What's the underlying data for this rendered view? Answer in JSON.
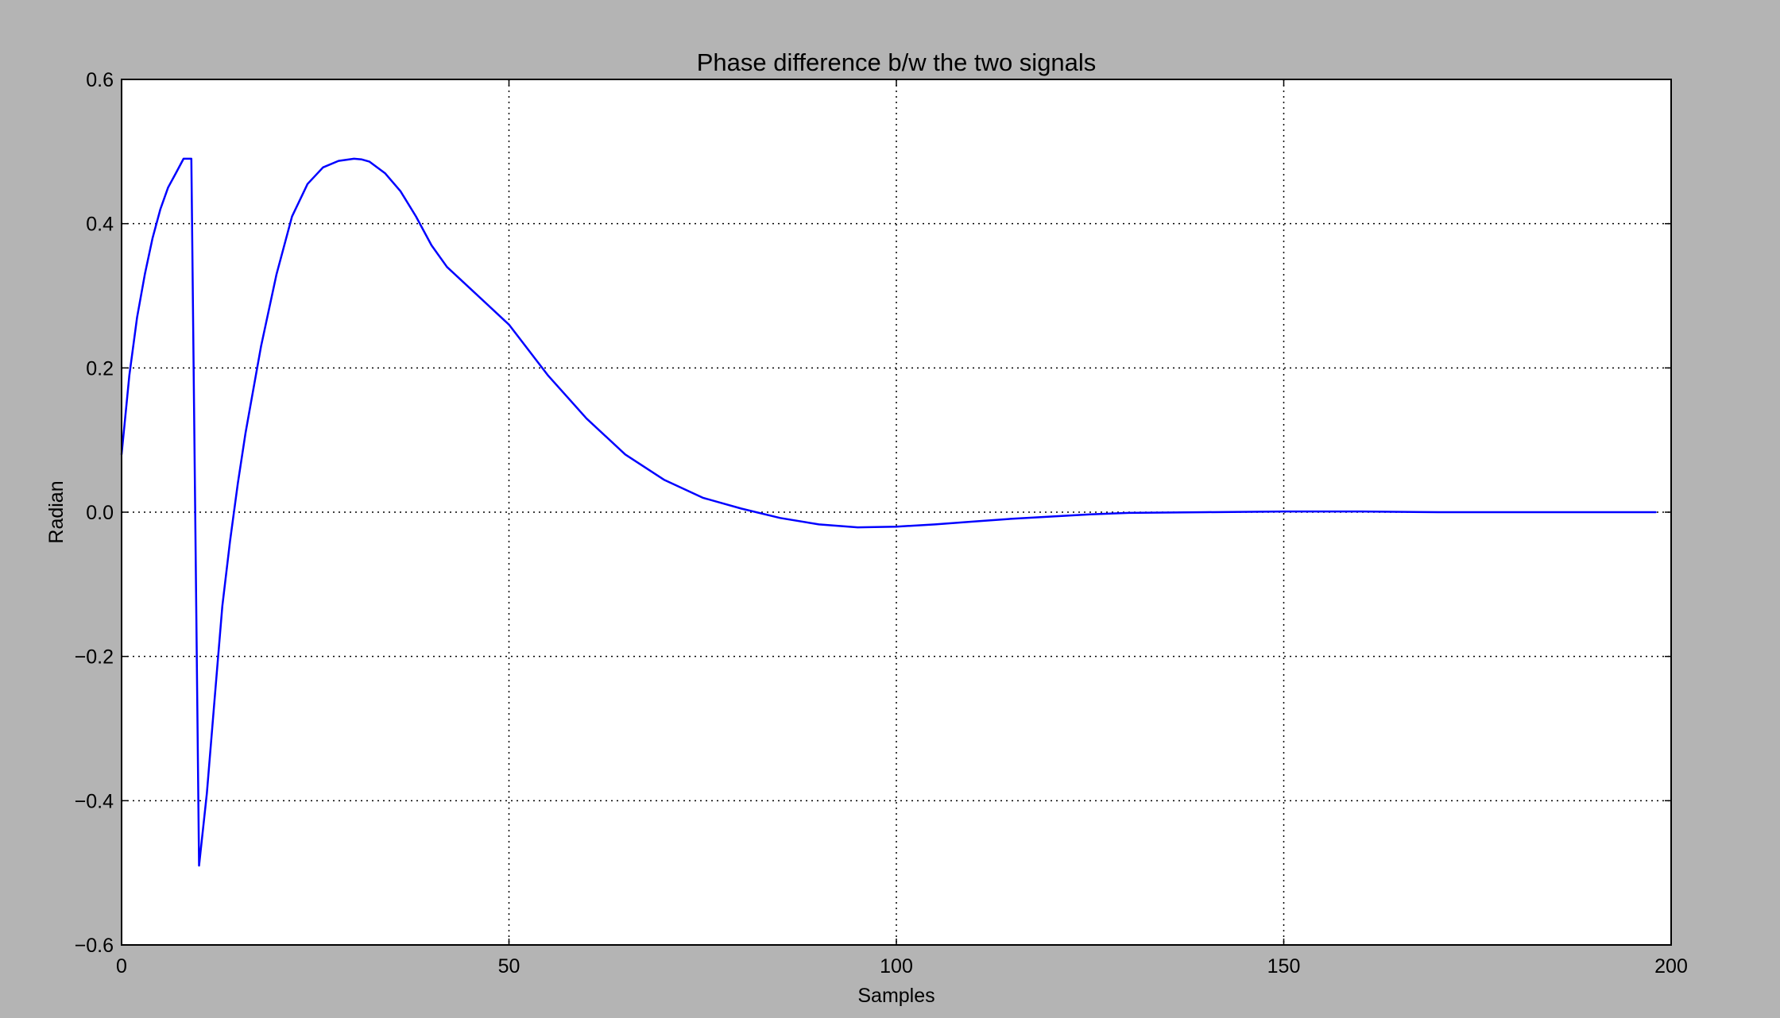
{
  "figure": {
    "background_color": "#b4b4b4",
    "plot_background_color": "#ffffff",
    "line_color": "#0000ff"
  },
  "chart_data": {
    "type": "line",
    "title": "Phase difference b/w the two signals",
    "xlabel": "Samples",
    "ylabel": "Radian",
    "xlim": [
      0,
      200
    ],
    "ylim": [
      -0.6,
      0.6
    ],
    "grid": true,
    "grid_style": "dotted",
    "xticks": [
      0,
      50,
      100,
      150,
      200
    ],
    "xtick_labels": [
      "0",
      "50",
      "100",
      "150",
      "200"
    ],
    "yticks": [
      -0.6,
      -0.4,
      -0.2,
      0.0,
      0.2,
      0.4,
      0.6
    ],
    "ytick_labels": [
      "−0.6",
      "−0.4",
      "−0.2",
      "0.0",
      "0.2",
      "0.4",
      "0.6"
    ],
    "series": [
      {
        "color": "#0000ff",
        "x": [
          0,
          1,
          2,
          3,
          4,
          5,
          6,
          7,
          8,
          9,
          10,
          11,
          12,
          13,
          14,
          15,
          16,
          18,
          20,
          22,
          24,
          26,
          28,
          30,
          31,
          32,
          34,
          36,
          38,
          40,
          42,
          45,
          50,
          55,
          60,
          65,
          70,
          75,
          80,
          85,
          90,
          95,
          100,
          105,
          110,
          115,
          120,
          125,
          130,
          140,
          150,
          160,
          170,
          180,
          190,
          198
        ],
        "y": [
          0.08,
          0.19,
          0.27,
          0.33,
          0.38,
          0.42,
          0.45,
          0.47,
          0.49,
          0.49,
          -0.49,
          -0.39,
          -0.26,
          -0.13,
          -0.04,
          0.04,
          0.11,
          0.23,
          0.33,
          0.41,
          0.455,
          0.478,
          0.487,
          0.49,
          0.489,
          0.486,
          0.47,
          0.445,
          0.41,
          0.37,
          0.34,
          0.31,
          0.26,
          0.19,
          0.13,
          0.08,
          0.045,
          0.02,
          0.005,
          -0.008,
          -0.017,
          -0.021,
          -0.02,
          -0.017,
          -0.013,
          -0.009,
          -0.006,
          -0.003,
          -0.001,
          0.0,
          0.001,
          0.001,
          0.0,
          0.0,
          0.0,
          0.0
        ]
      }
    ]
  }
}
